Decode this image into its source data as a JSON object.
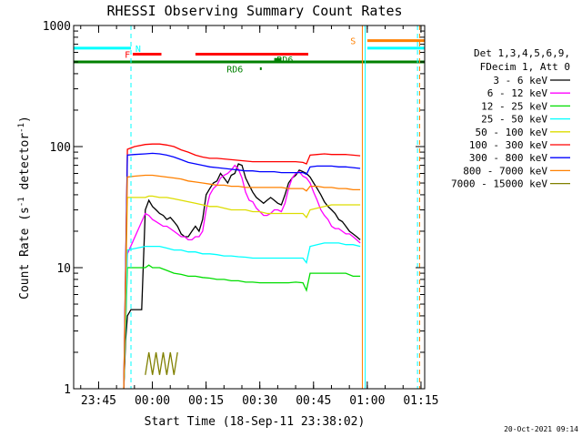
{
  "chart_data": {
    "type": "line",
    "title": "RHESSI Observing Summary Count Rates",
    "xlabel": "Start Time (18-Sep-11 23:38:02)",
    "ylabel_parts": [
      "Count Rate (s",
      "-1",
      " detector",
      "-1",
      ")"
    ],
    "yscale": "log",
    "ylim": [
      1,
      1000
    ],
    "xlim_minutes": [
      0,
      98
    ],
    "y_ticks": [
      {
        "value": 1,
        "label": "1"
      },
      {
        "value": 10,
        "label": "10"
      },
      {
        "value": 100,
        "label": "100"
      },
      {
        "value": 1000,
        "label": "1000"
      }
    ],
    "x_ticks": [
      {
        "t": 6.97,
        "label": "23:45"
      },
      {
        "t": 21.97,
        "label": "00:00"
      },
      {
        "t": 36.97,
        "label": "00:15"
      },
      {
        "t": 51.97,
        "label": "00:30"
      },
      {
        "t": 66.97,
        "label": "00:45"
      },
      {
        "t": 81.97,
        "label": "01:00"
      },
      {
        "t": 96.97,
        "label": "01:15"
      }
    ],
    "legend_header": [
      "Det 1,3,4,5,6,9,",
      "FDecim 1, Att 0"
    ],
    "legend_position": "right",
    "series": [
      {
        "name": "3 - 6 keV",
        "color": "#000000",
        "t": [
          14,
          14.5,
          15,
          16,
          18,
          19,
          20,
          21,
          22,
          23,
          24,
          25,
          26,
          27,
          28,
          29,
          30,
          31,
          32,
          33,
          34,
          35,
          36,
          37,
          38,
          39,
          40,
          41,
          42,
          43,
          44,
          45,
          46,
          47,
          48,
          49,
          50,
          51,
          52,
          53,
          54,
          55,
          56,
          57,
          58,
          59,
          60,
          61,
          62,
          63,
          64,
          65,
          66,
          67,
          68,
          69,
          70,
          71,
          72,
          73,
          74,
          75,
          76,
          77,
          78,
          79,
          80
        ],
        "v": [
          1,
          2.5,
          4,
          4.5,
          4.5,
          4.5,
          30,
          36,
          32,
          30,
          28,
          27,
          25,
          26,
          24,
          22,
          19,
          18,
          18,
          20,
          22,
          20,
          25,
          40,
          45,
          50,
          52,
          60,
          55,
          50,
          58,
          60,
          72,
          70,
          55,
          48,
          42,
          38,
          36,
          34,
          36,
          38,
          36,
          34,
          33,
          40,
          50,
          55,
          58,
          64,
          62,
          60,
          56,
          50,
          45,
          40,
          35,
          32,
          30,
          28,
          25,
          24,
          22,
          20,
          19,
          18,
          17
        ]
      },
      {
        "name": "6 - 12 keV",
        "color": "#ff00ff",
        "t": [
          14,
          15,
          20,
          21,
          22,
          23,
          24,
          25,
          26,
          27,
          28,
          29,
          30,
          31,
          32,
          33,
          34,
          35,
          36,
          37,
          38,
          39,
          40,
          41,
          42,
          43,
          44,
          45,
          46,
          47,
          48,
          49,
          50,
          51,
          52,
          53,
          54,
          55,
          56,
          57,
          58,
          59,
          60,
          61,
          62,
          63,
          64,
          65,
          66,
          67,
          68,
          69,
          70,
          71,
          72,
          73,
          74,
          75,
          76,
          77,
          78,
          79,
          80
        ],
        "v": [
          1,
          13,
          28,
          27,
          25,
          24,
          23,
          22,
          22,
          21,
          20,
          19,
          18,
          18,
          17,
          17,
          18,
          18,
          20,
          30,
          40,
          45,
          48,
          55,
          58,
          60,
          64,
          70,
          65,
          55,
          42,
          36,
          35,
          31,
          29,
          27,
          27,
          28,
          30,
          30,
          29,
          34,
          45,
          55,
          60,
          62,
          57,
          55,
          50,
          42,
          36,
          30,
          27,
          25,
          22,
          21,
          21,
          20,
          19,
          19,
          18,
          17,
          16
        ]
      },
      {
        "name": "12 - 25 keV",
        "color": "#00dd00",
        "t": [
          14,
          15,
          20,
          21,
          22,
          24,
          26,
          28,
          30,
          32,
          34,
          36,
          38,
          40,
          42,
          44,
          46,
          48,
          50,
          52,
          54,
          56,
          58,
          60,
          62,
          64,
          65,
          66,
          68,
          70,
          72,
          74,
          76,
          78,
          80
        ],
        "v": [
          1,
          10,
          10,
          10.5,
          10,
          10,
          9.5,
          9,
          8.8,
          8.5,
          8.5,
          8.3,
          8.2,
          8,
          8,
          7.8,
          7.8,
          7.6,
          7.6,
          7.5,
          7.5,
          7.5,
          7.5,
          7.5,
          7.6,
          7.5,
          6.5,
          9,
          9,
          9,
          9,
          9,
          9,
          8.5,
          8.5
        ]
      },
      {
        "name": "25 - 50 keV",
        "color": "#00ffff",
        "t": [
          14,
          15,
          20,
          21,
          22,
          24,
          26,
          28,
          30,
          32,
          34,
          36,
          38,
          40,
          42,
          44,
          46,
          48,
          50,
          52,
          54,
          56,
          58,
          60,
          62,
          64,
          65,
          66,
          68,
          70,
          72,
          74,
          76,
          78,
          80
        ],
        "v": [
          1,
          14,
          15,
          15,
          15,
          15,
          14.5,
          14,
          14,
          13.5,
          13.5,
          13,
          13,
          12.8,
          12.5,
          12.5,
          12.3,
          12.2,
          12,
          12,
          12,
          12,
          12,
          12,
          12,
          12,
          11,
          15,
          15.5,
          16,
          16,
          16,
          15.5,
          15.5,
          15
        ]
      },
      {
        "name": "50 - 100 keV",
        "color": "#dddd00",
        "t": [
          14,
          15,
          20,
          21,
          22,
          24,
          26,
          28,
          30,
          32,
          34,
          36,
          38,
          40,
          42,
          44,
          46,
          48,
          50,
          52,
          54,
          56,
          58,
          60,
          62,
          64,
          65,
          66,
          68,
          70,
          72,
          74,
          76,
          78,
          80
        ],
        "v": [
          1,
          38,
          38,
          39,
          39,
          38,
          38,
          37,
          36,
          35,
          34,
          33,
          32,
          32,
          31,
          30,
          30,
          30,
          29,
          29,
          28,
          28,
          28,
          28,
          28,
          28,
          26,
          30,
          31,
          32,
          33,
          33,
          33,
          33,
          33
        ]
      },
      {
        "name": "100 - 300 keV",
        "color": "#ff0000",
        "t": [
          14,
          15,
          17,
          20,
          22,
          24,
          26,
          28,
          30,
          32,
          34,
          36,
          38,
          40,
          42,
          44,
          46,
          48,
          50,
          52,
          54,
          56,
          58,
          60,
          62,
          64,
          65,
          66,
          68,
          70,
          72,
          74,
          76,
          78,
          80
        ],
        "v": [
          1,
          95,
          100,
          104,
          105,
          105,
          103,
          100,
          94,
          90,
          85,
          82,
          80,
          80,
          79,
          78,
          77,
          76,
          75,
          75,
          75,
          75,
          75,
          75,
          75,
          74,
          72,
          85,
          86,
          87,
          86,
          86,
          86,
          85,
          84
        ]
      },
      {
        "name": "300 - 800 keV",
        "color": "#0000ff",
        "t": [
          14,
          15,
          17,
          20,
          22,
          24,
          26,
          28,
          30,
          32,
          34,
          36,
          38,
          40,
          42,
          44,
          46,
          48,
          50,
          52,
          54,
          56,
          58,
          60,
          62,
          64,
          65,
          66,
          68,
          70,
          72,
          74,
          76,
          78,
          80
        ],
        "v": [
          1,
          85,
          86,
          87,
          88,
          87,
          85,
          82,
          78,
          74,
          72,
          70,
          68,
          67,
          66,
          65,
          64,
          63,
          63,
          62,
          62,
          62,
          61,
          61,
          61,
          61,
          59,
          68,
          69,
          69,
          69,
          68,
          68,
          67,
          66
        ]
      },
      {
        "name": "800 - 7000 keV",
        "color": "#ff8000",
        "t": [
          14,
          15,
          17,
          20,
          22,
          24,
          26,
          28,
          30,
          32,
          34,
          36,
          38,
          40,
          42,
          44,
          46,
          48,
          50,
          52,
          54,
          56,
          58,
          60,
          62,
          64,
          65,
          66,
          68,
          70,
          72,
          74,
          76,
          78,
          80
        ],
        "v": [
          1,
          56,
          57,
          58,
          58,
          57,
          56,
          55,
          54,
          52,
          51,
          50,
          49,
          48,
          48,
          47,
          47,
          46,
          46,
          46,
          46,
          46,
          46,
          45,
          45,
          45,
          43,
          47,
          47,
          46,
          46,
          45,
          45,
          44,
          44
        ]
      },
      {
        "name": "7000 - 15000 keV",
        "color": "#808000",
        "t": [
          20,
          21,
          22,
          23,
          24,
          25,
          26,
          27,
          28,
          29
        ],
        "v": [
          1.3,
          2,
          1.3,
          2,
          1.3,
          2,
          1.3,
          2,
          1.3,
          2
        ]
      }
    ],
    "state_bars": [
      {
        "label": "N",
        "color": "#00ffff",
        "ranges": [
          [
            0,
            16
          ]
        ],
        "y": 650,
        "label_t": 18
      },
      {
        "label": "F",
        "color": "#ff0000",
        "ranges": [
          [
            16.5,
            24.5
          ],
          [
            34,
            65.5
          ]
        ],
        "y": 580,
        "label_t": 15
      },
      {
        "label": "RD6",
        "color": "#008000",
        "ranges": [
          [
            52,
            52.5
          ]
        ],
        "y": 440,
        "label_t": 45
      },
      {
        "label": "RD6",
        "color": "#008000",
        "ranges": [
          [
            56,
            58
          ]
        ],
        "y": 525,
        "label_t": 59
      },
      {
        "label": "S",
        "color": "#ff8000",
        "ranges": [
          [
            82,
            98
          ]
        ],
        "y": 750,
        "label_t": 78
      },
      {
        "label": "",
        "color": "#00ffff",
        "ranges": [
          [
            82,
            98
          ]
        ],
        "y": 650,
        "label_t": 0
      },
      {
        "label": "",
        "color": "#008000",
        "ranges": [
          [
            0,
            98
          ]
        ],
        "y": 500,
        "label_t": 0
      }
    ],
    "vertical_markers": [
      {
        "t": 16,
        "color": "#00ffff",
        "style": "dashed"
      },
      {
        "t": 80.6,
        "color": "#ff8000",
        "style": "solid"
      },
      {
        "t": 81.4,
        "color": "#00ffff",
        "style": "solid"
      },
      {
        "t": 96,
        "color": "#00ffff",
        "style": "dashed"
      },
      {
        "t": 96.6,
        "color": "#ff8000",
        "style": "dashed"
      }
    ],
    "timestamp": "20-Oct-2021 09:14",
    "grid": false
  }
}
